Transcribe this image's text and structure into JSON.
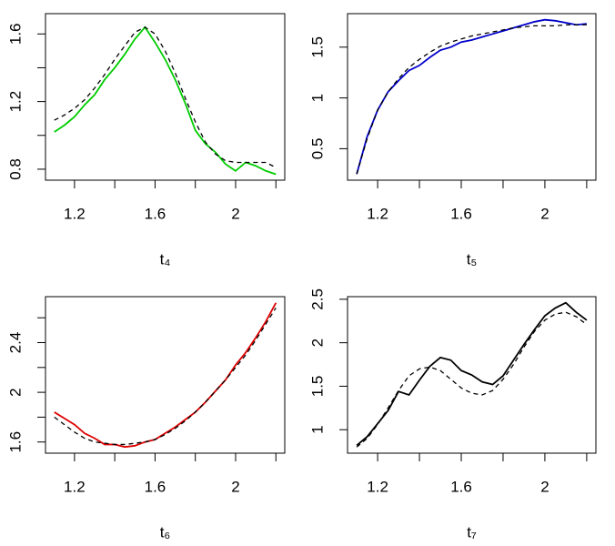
{
  "chart_data": [
    {
      "type": "line",
      "xlabel": "t₄",
      "x": [
        1.1,
        1.15,
        1.2,
        1.25,
        1.3,
        1.35,
        1.4,
        1.45,
        1.5,
        1.55,
        1.6,
        1.65,
        1.7,
        1.75,
        1.8,
        1.85,
        1.9,
        1.95,
        2.0,
        2.05,
        2.1,
        2.15,
        2.2
      ],
      "series": [
        {
          "color": "#00cc00",
          "linestyle": "solid",
          "values": [
            1.02,
            1.06,
            1.11,
            1.18,
            1.24,
            1.33,
            1.4,
            1.48,
            1.57,
            1.64,
            1.55,
            1.45,
            1.33,
            1.19,
            1.03,
            0.95,
            0.9,
            0.83,
            0.79,
            0.84,
            0.82,
            0.79,
            0.77
          ]
        },
        {
          "color": "#000000",
          "linestyle": "dashed",
          "values": [
            1.09,
            1.12,
            1.16,
            1.21,
            1.28,
            1.36,
            1.45,
            1.53,
            1.61,
            1.64,
            1.6,
            1.5,
            1.37,
            1.22,
            1.08,
            0.96,
            0.89,
            0.85,
            0.84,
            0.84,
            0.84,
            0.84,
            0.81
          ]
        }
      ],
      "xlim": [
        1.056,
        2.244
      ],
      "xticks": [
        1.2,
        1.6,
        2.0
      ],
      "xminorticks": [
        1.4,
        1.8,
        2.2
      ],
      "ylim": [
        0.735,
        1.72
      ],
      "yticks": [
        0.8,
        1.2,
        1.6
      ],
      "yminorticks": [
        1.0,
        1.4
      ]
    },
    {
      "type": "line",
      "xlabel": "t₅",
      "x": [
        1.1,
        1.15,
        1.2,
        1.25,
        1.3,
        1.35,
        1.4,
        1.45,
        1.5,
        1.55,
        1.6,
        1.65,
        1.7,
        1.75,
        1.8,
        1.85,
        1.9,
        1.95,
        2.0,
        2.05,
        2.1,
        2.15,
        2.2
      ],
      "series": [
        {
          "color": "#0000cc",
          "linestyle": "solid",
          "values": [
            0.25,
            0.62,
            0.88,
            1.06,
            1.17,
            1.27,
            1.32,
            1.4,
            1.47,
            1.5,
            1.55,
            1.57,
            1.6,
            1.63,
            1.66,
            1.69,
            1.72,
            1.75,
            1.77,
            1.76,
            1.74,
            1.72,
            1.73
          ]
        },
        {
          "color": "#000000",
          "linestyle": "dashed",
          "values": [
            0.25,
            0.6,
            0.88,
            1.06,
            1.19,
            1.3,
            1.38,
            1.45,
            1.51,
            1.55,
            1.58,
            1.61,
            1.63,
            1.65,
            1.67,
            1.69,
            1.7,
            1.71,
            1.71,
            1.71,
            1.72,
            1.72,
            1.72
          ]
        }
      ],
      "xlim": [
        1.056,
        2.244
      ],
      "xticks": [
        1.2,
        1.6,
        2.0
      ],
      "xminorticks": [
        1.4,
        1.8,
        2.2
      ],
      "ylim": [
        0.19,
        1.83
      ],
      "yticks": [
        0.5,
        1.0,
        1.5
      ],
      "yminorticks": []
    },
    {
      "type": "line",
      "xlabel": "t₆",
      "x": [
        1.1,
        1.15,
        1.2,
        1.25,
        1.3,
        1.35,
        1.4,
        1.45,
        1.5,
        1.55,
        1.6,
        1.65,
        1.7,
        1.75,
        1.8,
        1.85,
        1.9,
        1.95,
        2.0,
        2.05,
        2.1,
        2.15,
        2.2
      ],
      "series": [
        {
          "color": "#dd0000",
          "linestyle": "solid",
          "values": [
            1.84,
            1.79,
            1.74,
            1.67,
            1.63,
            1.58,
            1.58,
            1.56,
            1.57,
            1.6,
            1.62,
            1.67,
            1.72,
            1.78,
            1.84,
            1.92,
            2.01,
            2.1,
            2.22,
            2.32,
            2.44,
            2.57,
            2.72
          ]
        },
        {
          "color": "#000000",
          "linestyle": "dashed",
          "values": [
            1.8,
            1.74,
            1.68,
            1.63,
            1.6,
            1.59,
            1.58,
            1.58,
            1.59,
            1.6,
            1.62,
            1.66,
            1.71,
            1.77,
            1.84,
            1.92,
            2.01,
            2.1,
            2.2,
            2.3,
            2.42,
            2.55,
            2.68
          ]
        }
      ],
      "xlim": [
        1.056,
        2.244
      ],
      "xticks": [
        1.2,
        1.6,
        2.0
      ],
      "xminorticks": [
        1.4,
        1.8,
        2.2
      ],
      "ylim": [
        1.51,
        2.77
      ],
      "yticks": [
        1.6,
        2.0,
        2.4
      ],
      "yminorticks": [
        1.8,
        2.2,
        2.6
      ]
    },
    {
      "type": "line",
      "xlabel": "t₇",
      "x": [
        1.1,
        1.15,
        1.2,
        1.25,
        1.3,
        1.35,
        1.4,
        1.45,
        1.5,
        1.55,
        1.6,
        1.65,
        1.7,
        1.75,
        1.8,
        1.85,
        1.9,
        1.95,
        2.0,
        2.05,
        2.1,
        2.15,
        2.2
      ],
      "series": [
        {
          "color": "#000000",
          "linestyle": "solid",
          "values": [
            0.82,
            0.92,
            1.07,
            1.22,
            1.44,
            1.4,
            1.57,
            1.73,
            1.83,
            1.8,
            1.68,
            1.63,
            1.55,
            1.52,
            1.62,
            1.8,
            1.98,
            2.15,
            2.31,
            2.4,
            2.46,
            2.35,
            2.26
          ]
        },
        {
          "color": "#000000",
          "linestyle": "dashed",
          "values": [
            0.8,
            0.9,
            1.06,
            1.25,
            1.45,
            1.62,
            1.7,
            1.72,
            1.68,
            1.58,
            1.48,
            1.42,
            1.4,
            1.45,
            1.58,
            1.75,
            1.95,
            2.13,
            2.26,
            2.33,
            2.35,
            2.3,
            2.21
          ]
        }
      ],
      "xlim": [
        1.056,
        2.244
      ],
      "xticks": [
        1.2,
        1.6,
        2.0
      ],
      "xminorticks": [
        1.4,
        1.8,
        2.2
      ],
      "ylim": [
        0.73,
        2.53
      ],
      "yticks": [
        1.0,
        1.5,
        2.0,
        2.5
      ],
      "yminorticks": []
    }
  ]
}
